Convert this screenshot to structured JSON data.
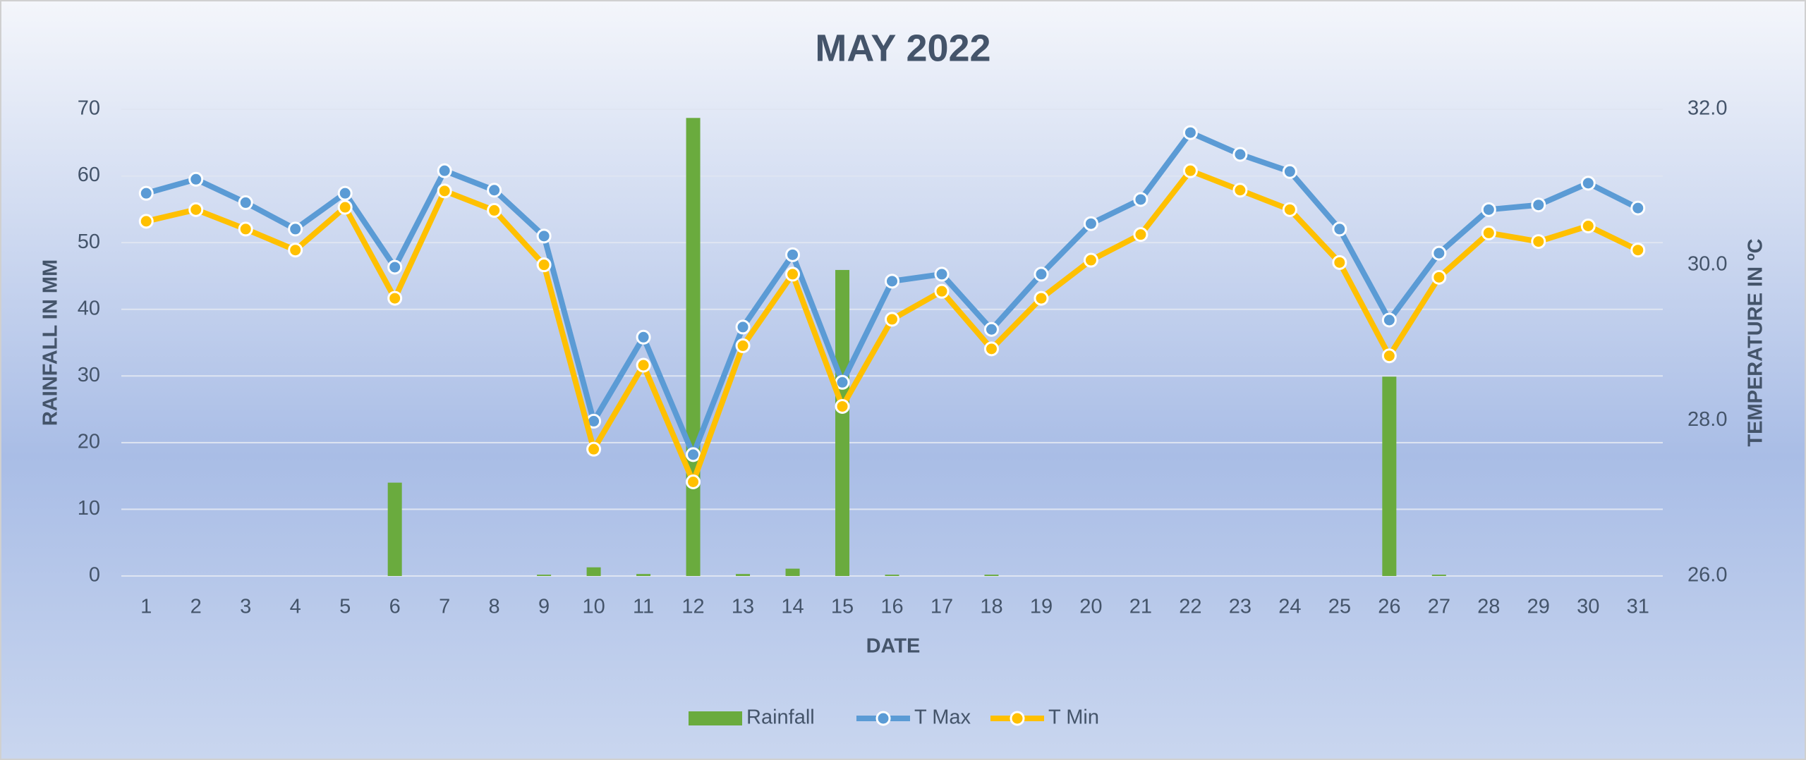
{
  "chart_data": {
    "type": "combo",
    "title": "MAY 2022",
    "x_label": "DATE",
    "y_label": "RAINFALL IN MM",
    "y2_label": "TEMPERATURE IN ºC",
    "categories": [
      "1",
      "2",
      "3",
      "4",
      "5",
      "6",
      "7",
      "8",
      "9",
      "10",
      "11",
      "12",
      "13",
      "14",
      "15",
      "16",
      "17",
      "18",
      "19",
      "20",
      "21",
      "22",
      "23",
      "24",
      "25",
      "26",
      "27",
      "28",
      "29",
      "30",
      "31"
    ],
    "series": [
      {
        "name": "Rainfall",
        "type": "bar",
        "color": "#6aab3e",
        "values": [
          0,
          0,
          0,
          0,
          0,
          14,
          0,
          0,
          0.2,
          1.3,
          0.3,
          68.7,
          0.3,
          1.1,
          45.9,
          0.2,
          0,
          0.2,
          0,
          0,
          0,
          0,
          0,
          0,
          0,
          29.9,
          0.2,
          0,
          0,
          0,
          0
        ]
      },
      {
        "name": "T Max",
        "type": "line",
        "axis": "y2",
        "color": "#5b9bd5",
        "values": [
          30.92,
          31.1,
          30.8,
          30.46,
          30.92,
          29.97,
          31.21,
          30.96,
          30.37,
          27.99,
          29.07,
          27.56,
          29.2,
          30.13,
          28.49,
          29.79,
          29.88,
          29.17,
          29.88,
          30.53,
          30.84,
          31.7,
          31.42,
          31.2,
          30.46,
          29.29,
          30.15,
          30.71,
          30.77,
          31.05,
          30.73
        ]
      },
      {
        "name": "T Min",
        "type": "line",
        "axis": "y2",
        "color": "#ffc000",
        "values": [
          30.56,
          30.71,
          30.46,
          30.19,
          30.74,
          29.57,
          30.95,
          30.7,
          30.0,
          27.63,
          28.71,
          27.21,
          28.96,
          29.88,
          28.18,
          29.3,
          29.66,
          28.92,
          29.57,
          30.06,
          30.39,
          31.21,
          30.96,
          30.71,
          30.03,
          28.83,
          29.84,
          30.41,
          30.3,
          30.5,
          30.19
        ]
      }
    ],
    "ylim": [
      0,
      70
    ],
    "yticks": [
      0,
      10,
      20,
      30,
      40,
      50,
      60,
      70
    ],
    "y2lim": [
      26,
      32
    ],
    "y2ticks": [
      {
        "value": 26,
        "label": "26.0"
      },
      {
        "value": 28,
        "label": "28.0"
      },
      {
        "value": 30,
        "label": "30.0"
      },
      {
        "value": 32,
        "label": "32.0"
      }
    ],
    "grid": true,
    "legend": "bottom"
  }
}
